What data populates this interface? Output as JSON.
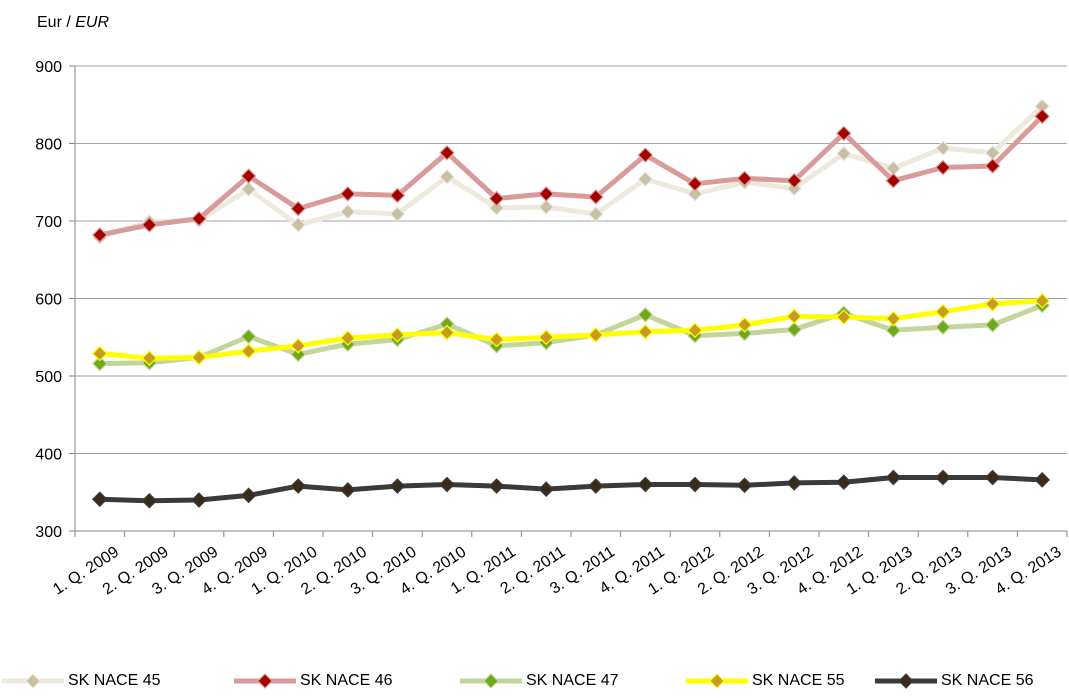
{
  "chart_data": {
    "type": "line",
    "unit_label": "Eur / ",
    "unit_label_italic": "EUR",
    "categories": [
      "1. Q. 2009",
      "2. Q. 2009",
      "3. Q. 2009",
      "4. Q. 2009",
      "1. Q. 2010",
      "2. Q. 2010",
      "3. Q. 2010",
      "4. Q. 2010",
      "1. Q. 2011",
      "2. Q. 2011",
      "3. Q. 2011",
      "4. Q. 2011",
      "1. Q. 2012",
      "2. Q. 2012",
      "3. Q. 2012",
      "4. Q. 2012",
      "1. Q. 2013",
      "2. Q. 2013",
      "3. Q. 2013",
      "4. Q. 2013"
    ],
    "ylim": [
      300,
      900
    ],
    "yticks": [
      300,
      400,
      500,
      600,
      700,
      800,
      900
    ],
    "grid": true,
    "legend_position": "bottom",
    "series": [
      {
        "name": "SK NACE 45",
        "line_color": "#ede9dd",
        "marker_color": "#c8bfa4",
        "values": [
          679,
          699,
          701,
          741,
          695,
          712,
          709,
          757,
          717,
          718,
          709,
          754,
          735,
          750,
          742,
          787,
          768,
          794,
          788,
          848
        ]
      },
      {
        "name": "SK NACE 46",
        "line_color": "#d99a9a",
        "marker_color": "#a30000",
        "values": [
          682,
          695,
          703,
          758,
          716,
          735,
          733,
          788,
          729,
          735,
          731,
          785,
          748,
          755,
          752,
          813,
          752,
          769,
          771,
          835
        ]
      },
      {
        "name": "SK NACE 47",
        "line_color": "#c2d69b",
        "marker_color": "#6fa81a",
        "values": [
          516,
          517,
          524,
          551,
          528,
          541,
          547,
          567,
          539,
          543,
          553,
          579,
          552,
          555,
          560,
          581,
          559,
          563,
          566,
          591
        ]
      },
      {
        "name": "SK NACE 55",
        "line_color": "#ffff00",
        "marker_color": "#c89a1e",
        "values": [
          529,
          523,
          524,
          532,
          539,
          549,
          553,
          556,
          547,
          550,
          553,
          557,
          559,
          566,
          577,
          576,
          574,
          583,
          593,
          597
        ]
      },
      {
        "name": "SK NACE 56",
        "line_color": "#3a3a3a",
        "marker_color": "#3a2a1a",
        "values": [
          341,
          339,
          340,
          346,
          358,
          353,
          358,
          360,
          358,
          354,
          358,
          360,
          360,
          359,
          362,
          363,
          369,
          369,
          369,
          366
        ]
      }
    ]
  }
}
